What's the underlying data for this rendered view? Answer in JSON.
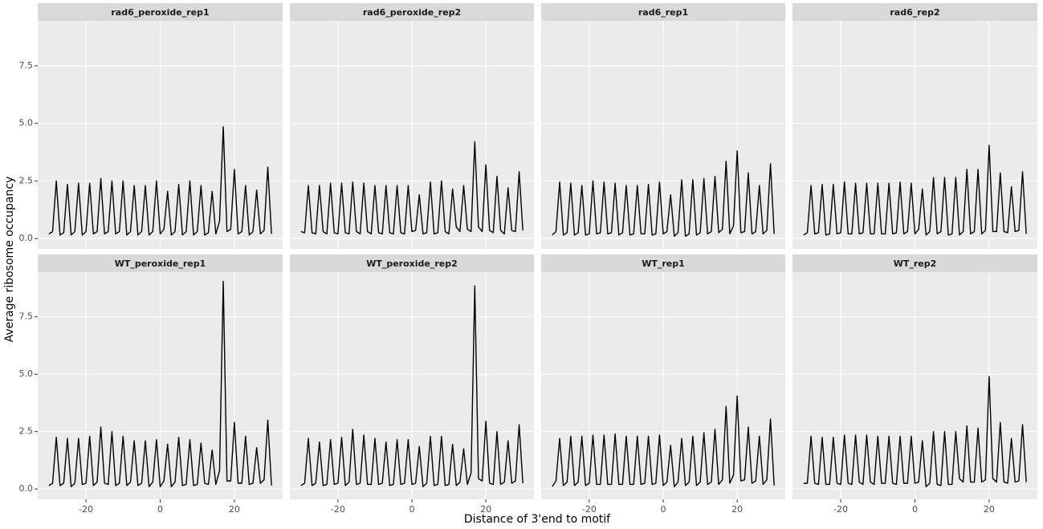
{
  "chart_data": {
    "type": "line",
    "x_label": "Distance of 3'end to motif",
    "y_label": "Average ribosome occupancy",
    "x": [
      -30,
      -29,
      -28,
      -27,
      -26,
      -25,
      -24,
      -23,
      -22,
      -21,
      -20,
      -19,
      -18,
      -17,
      -16,
      -15,
      -14,
      -13,
      -12,
      -11,
      -10,
      -9,
      -8,
      -7,
      -6,
      -5,
      -4,
      -3,
      -2,
      -1,
      0,
      1,
      2,
      3,
      4,
      5,
      6,
      7,
      8,
      9,
      10,
      11,
      12,
      13,
      14,
      15,
      16,
      17,
      18,
      19,
      20,
      21,
      22,
      23,
      24,
      25,
      26,
      27,
      28,
      29,
      30
    ],
    "xlim": [
      -33,
      33
    ],
    "xticks": [
      -20,
      0,
      20
    ],
    "ylim": [
      -0.45,
      9.45
    ],
    "yticks": [
      {
        "value": 0,
        "label": "0.0"
      },
      {
        "value": 2.5,
        "label": "2.5"
      },
      {
        "value": 5,
        "label": "5.0"
      },
      {
        "value": 7.5,
        "label": "7.5"
      }
    ],
    "grid": true,
    "series": [
      {
        "name": "rad6_peroxide_rep1",
        "color": "#000000",
        "values": [
          0.2,
          0.3,
          2.5,
          0.15,
          0.25,
          2.35,
          0.15,
          0.3,
          2.4,
          0.15,
          0.3,
          2.4,
          0.2,
          0.3,
          2.6,
          0.2,
          0.3,
          2.5,
          0.2,
          0.3,
          2.5,
          0.15,
          0.3,
          2.3,
          0.15,
          0.3,
          2.3,
          0.15,
          0.3,
          2.5,
          0.2,
          0.4,
          2.05,
          0.15,
          0.3,
          2.35,
          0.15,
          0.3,
          2.5,
          0.15,
          0.3,
          2.3,
          0.15,
          0.25,
          2.05,
          0.2,
          0.75,
          4.85,
          0.3,
          0.4,
          3.0,
          0.2,
          0.3,
          2.3,
          0.15,
          0.3,
          2.1,
          0.2,
          0.35,
          3.1,
          0.2
        ]
      },
      {
        "name": "rad6_peroxide_rep2",
        "color": "#000000",
        "values": [
          0.3,
          0.25,
          2.3,
          0.25,
          0.2,
          2.3,
          0.3,
          0.2,
          2.4,
          0.25,
          0.2,
          2.4,
          0.25,
          0.2,
          2.45,
          0.3,
          0.2,
          2.4,
          0.3,
          0.2,
          2.3,
          0.25,
          0.2,
          2.3,
          0.25,
          0.2,
          2.3,
          0.25,
          0.2,
          2.3,
          0.3,
          0.35,
          1.9,
          0.2,
          0.25,
          2.45,
          0.2,
          0.25,
          2.5,
          0.3,
          0.2,
          2.15,
          0.5,
          0.3,
          2.3,
          0.4,
          0.3,
          4.2,
          0.5,
          0.3,
          3.2,
          0.35,
          0.25,
          2.7,
          0.35,
          0.2,
          2.2,
          0.35,
          0.3,
          2.9,
          0.35
        ]
      },
      {
        "name": "rad6_rep1",
        "color": "#000000",
        "values": [
          0.15,
          0.3,
          2.45,
          0.15,
          0.25,
          2.4,
          0.15,
          0.25,
          2.3,
          0.15,
          0.2,
          2.5,
          0.2,
          0.25,
          2.45,
          0.2,
          0.25,
          2.4,
          0.15,
          0.25,
          2.3,
          0.15,
          0.2,
          2.3,
          0.2,
          0.2,
          2.35,
          0.15,
          0.2,
          2.45,
          0.2,
          0.3,
          1.9,
          0.1,
          0.25,
          2.55,
          0.1,
          0.2,
          2.55,
          0.15,
          0.25,
          2.6,
          0.2,
          0.3,
          2.7,
          0.25,
          0.4,
          3.35,
          0.2,
          0.55,
          3.8,
          0.25,
          0.3,
          2.85,
          0.2,
          0.3,
          2.3,
          0.2,
          0.35,
          3.25,
          0.2
        ]
      },
      {
        "name": "rad6_rep2",
        "color": "#000000",
        "values": [
          0.15,
          0.25,
          2.3,
          0.2,
          0.25,
          2.35,
          0.15,
          0.2,
          2.35,
          0.2,
          0.25,
          2.45,
          0.2,
          0.2,
          2.4,
          0.2,
          0.25,
          2.4,
          0.2,
          0.2,
          2.4,
          0.2,
          0.2,
          2.4,
          0.2,
          0.25,
          2.45,
          0.2,
          0.3,
          2.4,
          0.2,
          0.4,
          2.15,
          0.15,
          0.3,
          2.65,
          0.2,
          0.3,
          2.65,
          0.15,
          0.2,
          2.65,
          0.15,
          0.3,
          3.0,
          0.2,
          0.3,
          3.0,
          0.2,
          0.35,
          4.05,
          0.3,
          0.3,
          2.85,
          0.3,
          0.25,
          2.25,
          0.3,
          0.35,
          2.9,
          0.2
        ]
      },
      {
        "name": "WT_peroxide_rep1",
        "color": "#000000",
        "values": [
          0.15,
          0.25,
          2.25,
          0.15,
          0.25,
          2.2,
          0.1,
          0.25,
          2.2,
          0.2,
          0.25,
          2.3,
          0.15,
          0.3,
          2.7,
          0.25,
          0.2,
          2.5,
          0.15,
          0.25,
          2.3,
          0.15,
          0.3,
          2.1,
          0.15,
          0.25,
          2.1,
          0.1,
          0.3,
          2.15,
          0.1,
          0.35,
          1.95,
          0.1,
          0.3,
          2.25,
          0.15,
          0.2,
          2.15,
          0.15,
          0.2,
          2.0,
          0.25,
          0.2,
          1.7,
          0.2,
          0.8,
          9.05,
          0.35,
          0.35,
          2.9,
          0.25,
          0.25,
          2.3,
          0.2,
          0.25,
          1.8,
          0.25,
          0.4,
          3.0,
          0.15
        ]
      },
      {
        "name": "WT_peroxide_rep2",
        "color": "#000000",
        "values": [
          0.15,
          0.25,
          2.2,
          0.15,
          0.25,
          2.05,
          0.15,
          0.2,
          2.15,
          0.2,
          0.25,
          2.25,
          0.15,
          0.3,
          2.6,
          0.2,
          0.25,
          2.35,
          0.2,
          0.2,
          2.2,
          0.2,
          0.25,
          2.05,
          0.15,
          0.2,
          2.15,
          0.2,
          0.25,
          2.15,
          0.2,
          0.25,
          1.85,
          0.1,
          0.25,
          2.3,
          0.15,
          0.2,
          2.3,
          0.15,
          0.2,
          1.95,
          0.15,
          0.3,
          1.75,
          0.2,
          0.7,
          8.85,
          0.45,
          0.35,
          2.95,
          0.25,
          0.2,
          2.5,
          0.2,
          0.3,
          2.1,
          0.25,
          0.35,
          2.8,
          0.25
        ]
      },
      {
        "name": "WT_rep1",
        "color": "#000000",
        "values": [
          0.1,
          0.35,
          2.2,
          0.15,
          0.3,
          2.3,
          0.15,
          0.3,
          2.3,
          0.15,
          0.25,
          2.35,
          0.2,
          0.2,
          2.35,
          0.2,
          0.2,
          2.4,
          0.2,
          0.2,
          2.3,
          0.2,
          0.2,
          2.3,
          0.2,
          0.25,
          2.3,
          0.2,
          0.25,
          2.35,
          0.15,
          0.3,
          1.9,
          0.1,
          0.3,
          2.2,
          0.15,
          0.3,
          2.3,
          0.15,
          0.3,
          2.45,
          0.2,
          0.3,
          2.6,
          0.2,
          0.4,
          3.6,
          0.25,
          0.6,
          4.05,
          0.35,
          0.4,
          2.7,
          0.25,
          0.35,
          2.3,
          0.2,
          0.4,
          3.05,
          0.15
        ]
      },
      {
        "name": "WT_rep2",
        "color": "#000000",
        "values": [
          0.25,
          0.25,
          2.3,
          0.25,
          0.2,
          2.25,
          0.2,
          0.2,
          2.25,
          0.25,
          0.2,
          2.35,
          0.25,
          0.2,
          2.35,
          0.3,
          0.2,
          2.35,
          0.3,
          0.2,
          2.3,
          0.25,
          0.25,
          2.3,
          0.25,
          0.2,
          2.3,
          0.25,
          0.25,
          2.3,
          0.25,
          0.3,
          2.1,
          0.1,
          0.25,
          2.5,
          0.2,
          0.15,
          2.5,
          0.2,
          0.2,
          2.5,
          0.45,
          0.3,
          2.75,
          0.3,
          0.3,
          2.65,
          0.3,
          0.4,
          4.9,
          0.45,
          0.3,
          2.9,
          0.3,
          0.25,
          2.2,
          0.3,
          0.35,
          2.8,
          0.3
        ]
      }
    ]
  }
}
